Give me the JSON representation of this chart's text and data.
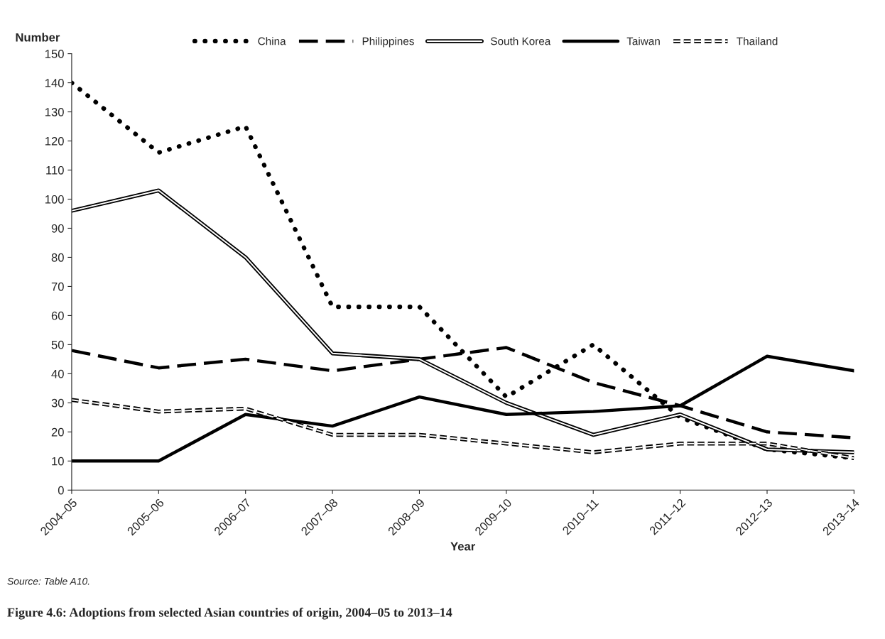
{
  "chart_data": {
    "type": "line",
    "title": "Figure 4.6: Adoptions from selected Asian countries of origin, 2004–05 to 2013–14",
    "xlabel": "Year",
    "ylabel": "Number",
    "annotations": [
      "Source: Table A10."
    ],
    "categories": [
      "2004–05",
      "2005–06",
      "2006–07",
      "2007–08",
      "2008–09",
      "2009–10",
      "2010–11",
      "2011–12",
      "2012–13",
      "2013–14"
    ],
    "series": [
      {
        "name": "China",
        "color": "#000000",
        "line_style": "dotted",
        "values": [
          140,
          116,
          125,
          63,
          63,
          32,
          50,
          25,
          14,
          11
        ]
      },
      {
        "name": "Philippines",
        "color": "#000000",
        "line_style": "dashed",
        "values": [
          48,
          42,
          45,
          41,
          45,
          49,
          37,
          29,
          20,
          18
        ]
      },
      {
        "name": "South Korea",
        "color": "#000000",
        "line_style": "solid",
        "values": [
          96,
          103,
          80,
          47,
          45,
          30,
          19,
          26,
          14,
          13
        ]
      },
      {
        "name": "Taiwan",
        "color": "#000000",
        "values": [
          10,
          10,
          26,
          22,
          32,
          26,
          27,
          29,
          46,
          41
        ]
      },
      {
        "name": "Thailand",
        "color": "#000000",
        "line_style": "double_dashed",
        "values": [
          31,
          27,
          28,
          19,
          19,
          16,
          13,
          16,
          16,
          11
        ]
      }
    ],
    "ylim": [
      0,
      150
    ],
    "yticks": [
      0,
      10,
      20,
      30,
      40,
      50,
      60,
      70,
      80,
      90,
      100,
      110,
      120,
      130,
      140,
      150
    ],
    "grid": false,
    "legend": "top",
    "marker": "none"
  }
}
